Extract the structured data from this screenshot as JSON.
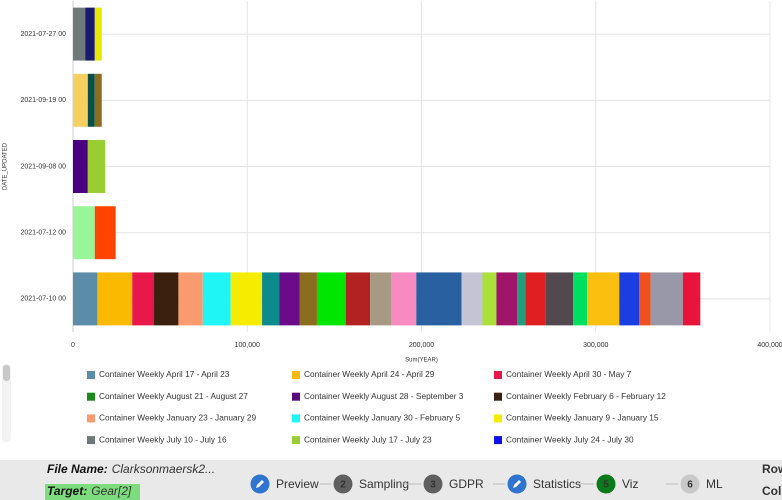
{
  "chart_data": {
    "type": "stacked-bar-horizontal",
    "x_label": "Sum(YEAR)",
    "y_label": "DATE_UPDATED",
    "categories": [
      "2021-07-27 00",
      "2021-09-19 00",
      "2021-09-08 00",
      "2021-07-12 00",
      "2021-07-10 00"
    ],
    "stacks": [
      [
        {
          "color": "#6e7a7a",
          "value": 7000
        },
        {
          "color": "#1a1a6e",
          "value": 5500
        },
        {
          "color": "#e8e800",
          "value": 4000
        }
      ],
      [
        {
          "color": "#f5d060",
          "value": 8500
        },
        {
          "color": "#0a5048",
          "value": 4000
        },
        {
          "color": "#8b6d1f",
          "value": 4000
        }
      ],
      [
        {
          "color": "#4b0082",
          "value": 8500
        },
        {
          "color": "#9acd32",
          "value": 10000
        }
      ],
      [
        {
          "color": "#98f598",
          "value": 12500
        },
        {
          "color": "#ff4500",
          "value": 12000
        }
      ],
      [
        {
          "color": "#5b8ca8",
          "value": 14000
        },
        {
          "color": "#fbb900",
          "value": 20000
        },
        {
          "color": "#e8194a",
          "value": 12500
        },
        {
          "color": "#3b1f0f",
          "value": 14000
        },
        {
          "color": "#f99b6e",
          "value": 14000
        },
        {
          "color": "#1ff5f5",
          "value": 16000
        },
        {
          "color": "#f5ec00",
          "value": 18000
        },
        {
          "color": "#0d8a8a",
          "value": 10000
        },
        {
          "color": "#6a0c8a",
          "value": 11500
        },
        {
          "color": "#8b6d1f",
          "value": 10000
        },
        {
          "color": "#00e600",
          "value": 16500
        },
        {
          "color": "#b22222",
          "value": 14000
        },
        {
          "color": "#a89a82",
          "value": 12000
        },
        {
          "color": "#f78ac0",
          "value": 14500
        },
        {
          "color": "#2860a0",
          "value": 26000
        },
        {
          "color": "#c4c4d4",
          "value": 12000
        },
        {
          "color": "#a9e03a",
          "value": 8000
        },
        {
          "color": "#a0146a",
          "value": 12000
        },
        {
          "color": "#1f9e7a",
          "value": 4500
        },
        {
          "color": "#e02020",
          "value": 11500
        },
        {
          "color": "#524850",
          "value": 16000
        },
        {
          "color": "#00e060",
          "value": 8000
        },
        {
          "color": "#fbbf10",
          "value": 18500
        },
        {
          "color": "#1b3ee0",
          "value": 11500
        },
        {
          "color": "#f05020",
          "value": 6500
        },
        {
          "color": "#9898a8",
          "value": 18500
        },
        {
          "color": "#e8143c",
          "value": 10000
        }
      ]
    ],
    "xlim": [
      0,
      400000
    ],
    "xticks": [
      0,
      {
        "value": 100000,
        "label": "100,000"
      },
      {
        "value": 200000,
        "label": "200,000"
      },
      {
        "value": 300000,
        "label": "300,000"
      },
      {
        "value": 400000,
        "label": "400,000"
      }
    ],
    "grid": true,
    "legend": [
      {
        "name": "Container Weekly April 17 - April 23",
        "color": "#5b8ca8"
      },
      {
        "name": "Container Weekly April 24 - April 29",
        "color": "#fbb900"
      },
      {
        "name": "Container Weekly April 30 - May 7",
        "color": "#e8194a"
      },
      {
        "name": "Container Weekly August 21 - August 27",
        "color": "#1a8a1a"
      },
      {
        "name": "Container Weekly August 28 - September 3",
        "color": "#5a0a7a"
      },
      {
        "name": "Container Weekly February 6 - February 12",
        "color": "#3b1f0f"
      },
      {
        "name": "Container Weekly January 23 - January 29",
        "color": "#f99b6e"
      },
      {
        "name": "Container Weekly January 30 - February 5",
        "color": "#1ff5f5"
      },
      {
        "name": "Container Weekly January 9 - January 15",
        "color": "#f5ec00"
      },
      {
        "name": "Container Weekly July 10 - July 16",
        "color": "#6e7a7a"
      },
      {
        "name": "Container Weekly July 17 - July 23",
        "color": "#9acd32"
      },
      {
        "name": "Container Weekly July 24 - July 30",
        "color": "#1010e8"
      }
    ]
  },
  "footer": {
    "file_label": "File Name:",
    "file_name": "Clarksonmaersk2...",
    "target_label": "Target:",
    "target_name": "Gear[2]",
    "steps": [
      {
        "label": "Preview",
        "color": "#2f74d0"
      },
      {
        "number": "2",
        "label": "Sampling",
        "color": "#606060"
      },
      {
        "number": "3",
        "label": "GDPR",
        "color": "#606060"
      },
      {
        "label": "Statistics",
        "color": "#2f74d0"
      },
      {
        "number": "5",
        "label": "Viz",
        "color": "#0a7a1a"
      },
      {
        "number": "6",
        "label": "ML",
        "color": "#c8c8c8"
      }
    ],
    "right_top": "Row",
    "right_bottom": "Col"
  }
}
